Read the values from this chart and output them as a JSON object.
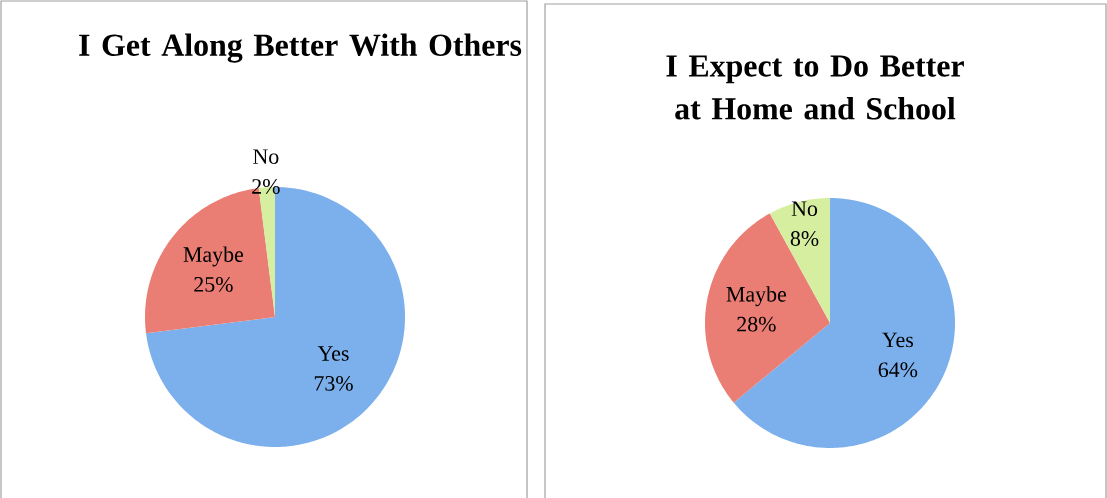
{
  "chart_data": [
    {
      "type": "pie",
      "title": "I Get Along Better With Others",
      "categories": [
        "Yes",
        "Maybe",
        "No"
      ],
      "values": [
        73,
        25,
        2
      ],
      "value_labels": [
        "73%",
        "25%",
        "2%"
      ],
      "colors": [
        "#7cb0ec",
        "#ea7d74",
        "#d5eea0"
      ]
    },
    {
      "type": "pie",
      "title": "I Expect to Do Better at Home and School",
      "categories": [
        "Yes",
        "Maybe",
        "No"
      ],
      "values": [
        64,
        28,
        8
      ],
      "value_labels": [
        "64%",
        "28%",
        "8%"
      ],
      "colors": [
        "#7cb0ec",
        "#ea7d74",
        "#d5eea0"
      ]
    }
  ]
}
